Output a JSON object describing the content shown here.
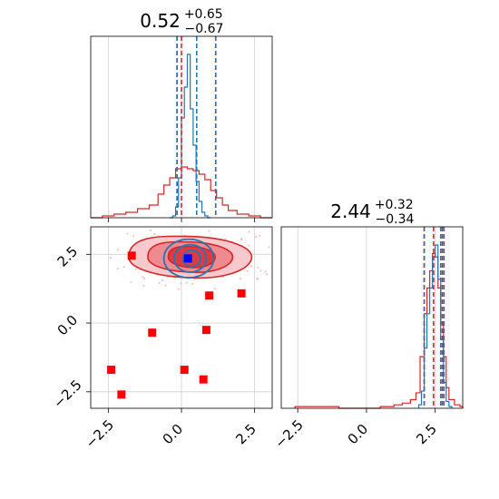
{
  "chart_data": [
    {
      "type": "histogram",
      "panel": "top-left",
      "title": {
        "median": "0.52",
        "plus": "+0.65",
        "minus": "−0.67"
      },
      "xlim": [
        -3.1,
        3.1
      ],
      "grid": true,
      "xticks": [
        -2.5,
        0.0,
        2.5
      ],
      "series": [
        {
          "color": "#1f77b4",
          "bins_x": [
            -0.4,
            -0.3,
            -0.2,
            -0.1,
            0.0,
            0.1,
            0.2,
            0.3,
            0.4,
            0.5,
            0.6,
            0.7,
            0.8,
            0.9,
            1.0
          ],
          "heights": [
            0.0,
            0.01,
            0.06,
            0.22,
            0.55,
            0.72,
            0.9,
            0.6,
            0.4,
            0.2,
            0.09,
            0.03,
            0.01,
            0.0
          ],
          "quantile_lines": [
            -0.15,
            0.52,
            1.17
          ]
        },
        {
          "color": "#d62728",
          "bins_x": [
            -3.1,
            -2.7,
            -2.3,
            -1.9,
            -1.5,
            -1.1,
            -0.8,
            -0.6,
            -0.4,
            -0.2,
            0.0,
            0.2,
            0.4,
            0.6,
            0.8,
            1.0,
            1.2,
            1.4,
            1.6,
            1.9,
            2.3,
            2.7,
            3.1
          ],
          "heights": [
            0.0,
            0.01,
            0.02,
            0.03,
            0.05,
            0.07,
            0.13,
            0.18,
            0.22,
            0.27,
            0.28,
            0.27,
            0.26,
            0.24,
            0.21,
            0.15,
            0.11,
            0.07,
            0.04,
            0.02,
            0.01,
            0.0
          ],
          "quantile_lines": [
            -0.15,
            0.0,
            1.17
          ]
        }
      ]
    },
    {
      "type": "contour-scatter",
      "panel": "bottom-left",
      "xlim": [
        -3.1,
        3.1
      ],
      "ylim": [
        -3.1,
        3.5
      ],
      "grid": true,
      "xticks": [
        -2.5,
        0.0,
        2.5
      ],
      "xtick_labels": [
        "−2.5",
        "0.0",
        "2.5"
      ],
      "yticks": [
        -2.5,
        0.0,
        2.5
      ],
      "ytick_labels": [
        "−2.5",
        "0.0",
        "2.5"
      ],
      "red_contours": [
        {
          "cx": 0.3,
          "cy": 2.4,
          "rx": 2.1,
          "ry": 0.75
        },
        {
          "cx": 0.3,
          "cy": 2.4,
          "rx": 1.45,
          "ry": 0.55
        },
        {
          "cx": 0.35,
          "cy": 2.4,
          "rx": 0.8,
          "ry": 0.38
        }
      ],
      "blue_contours": [
        {
          "cx": 0.25,
          "cy": 2.35,
          "rx": 0.85,
          "ry": 0.7
        },
        {
          "cx": 0.3,
          "cy": 2.35,
          "rx": 0.55,
          "ry": 0.5
        },
        {
          "cx": 0.35,
          "cy": 2.35,
          "rx": 0.3,
          "ry": 0.3
        }
      ],
      "red_squares": [
        {
          "x": -1.7,
          "y": 2.45
        },
        {
          "x": 0.95,
          "y": 1.0
        },
        {
          "x": 2.05,
          "y": 1.08
        },
        {
          "x": -1.0,
          "y": -0.35
        },
        {
          "x": 0.85,
          "y": -0.25
        },
        {
          "x": -2.4,
          "y": -1.7
        },
        {
          "x": 0.1,
          "y": -1.7
        },
        {
          "x": 0.75,
          "y": -2.05
        },
        {
          "x": -2.05,
          "y": -2.6
        }
      ],
      "blue_point": {
        "x": 0.22,
        "y": 2.35
      }
    },
    {
      "type": "histogram",
      "panel": "bottom-right",
      "title": {
        "median": "2.44",
        "plus": "+0.32",
        "minus": "−0.34"
      },
      "xlim": [
        -3.1,
        3.5
      ],
      "grid": true,
      "xticks": [
        -2.5,
        0.0,
        2.5
      ],
      "xtick_labels": [
        "−2.5",
        "0.0",
        "2.5"
      ],
      "series": [
        {
          "color": "#1f77b4",
          "bins_x": [
            1.9,
            2.0,
            2.1,
            2.2,
            2.3,
            2.4,
            2.5,
            2.6,
            2.7,
            2.8,
            2.9,
            3.0,
            3.1
          ],
          "heights": [
            0.02,
            0.1,
            0.35,
            0.55,
            0.7,
            0.88,
            0.95,
            0.75,
            0.4,
            0.15,
            0.04,
            0.01
          ],
          "quantile_lines": [
            2.1,
            2.7,
            2.82
          ]
        },
        {
          "color": "#d62728",
          "bins_x": [
            -2.6,
            -1.0,
            0.5,
            1.0,
            1.3,
            1.6,
            1.8,
            1.95,
            2.1,
            2.2,
            2.3,
            2.4,
            2.5,
            2.6,
            2.7,
            2.8,
            2.9,
            3.0,
            3.2,
            3.4,
            3.5
          ],
          "heights": [
            0.01,
            0.0,
            0.01,
            0.02,
            0.03,
            0.05,
            0.09,
            0.3,
            0.55,
            0.7,
            0.8,
            0.9,
            0.88,
            0.7,
            0.5,
            0.3,
            0.12,
            0.05,
            0.02,
            0.01
          ],
          "quantile_lines": [
            2.1,
            2.44,
            2.76
          ]
        }
      ]
    }
  ]
}
